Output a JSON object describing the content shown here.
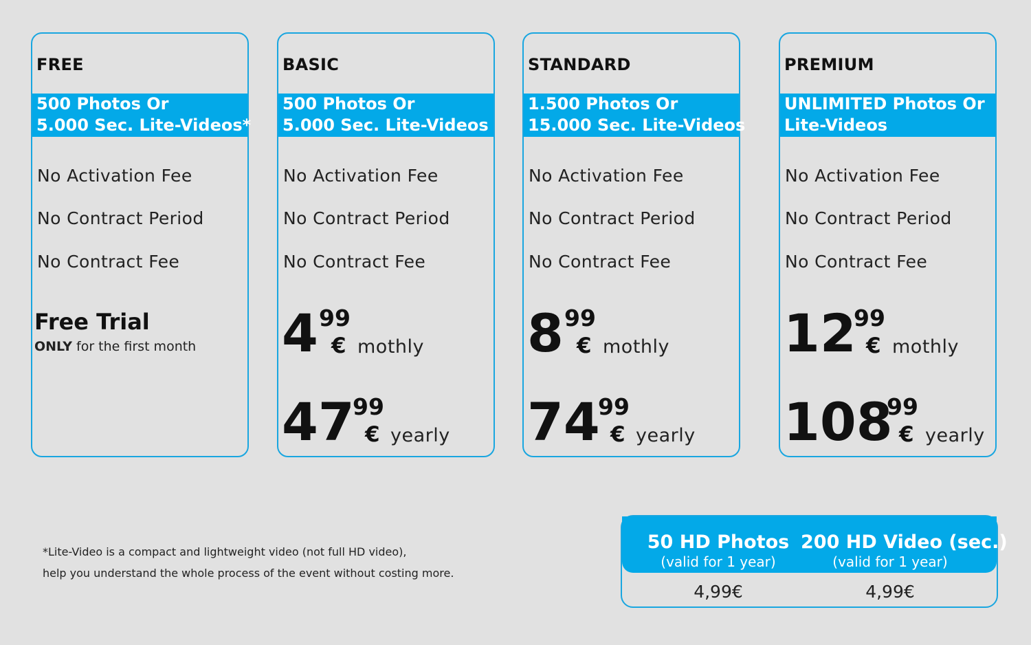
{
  "plans": [
    {
      "name": "FREE",
      "band": [
        "500 Photos Or",
        "5.000 Sec. Lite-Videos*"
      ],
      "features": [
        "No Activation Fee",
        "No Contract Period",
        "No Contract Fee"
      ],
      "trial_title": "Free Trial",
      "trial_sub_bold": "ONLY",
      "trial_sub_rest": " for the first month"
    },
    {
      "name": "BASIC",
      "band": [
        "500 Photos Or",
        "5.000 Sec. Lite-Videos"
      ],
      "features": [
        "No Activation Fee",
        "No Contract Period",
        "No Contract Fee"
      ],
      "monthly": {
        "whole": "4",
        "cents": "99",
        "currency": "€",
        "period": "mothly"
      },
      "yearly": {
        "whole": "47",
        "cents": "99",
        "currency": "€",
        "period": "yearly"
      }
    },
    {
      "name": "STANDARD",
      "band": [
        "1.500 Photos Or",
        "15.000 Sec. Lite-Videos"
      ],
      "features": [
        "No Activation Fee",
        "No Contract Period",
        "No Contract Fee"
      ],
      "monthly": {
        "whole": "8",
        "cents": "99",
        "currency": "€",
        "period": "mothly"
      },
      "yearly": {
        "whole": "74",
        "cents": "99",
        "currency": "€",
        "period": "yearly"
      }
    },
    {
      "name": "PREMIUM",
      "band": [
        "UNLIMITED Photos Or",
        "Lite-Videos"
      ],
      "features": [
        "No Activation Fee",
        "No Contract Period",
        "No Contract Fee"
      ],
      "monthly": {
        "whole": "12",
        "cents": "99",
        "currency": "€",
        "period": "mothly"
      },
      "yearly": {
        "whole": "108",
        "cents": "99",
        "currency": "€",
        "period": "yearly"
      }
    }
  ],
  "footnote": [
    "*Lite-Video is a compact and lightweight video (not full HD video),",
    "help you understand the whole process of the event without costing more."
  ],
  "extras": [
    {
      "title": "50 HD Photos",
      "sub": "(valid for 1 year)",
      "price": "4,99€"
    },
    {
      "title": "200 HD Video (sec.)",
      "sub": "(valid for 1 year)",
      "price": "4,99€"
    }
  ],
  "colors": {
    "accent": "#03a9e8",
    "border": "#19a6e0",
    "background": "#e1e1e1"
  }
}
